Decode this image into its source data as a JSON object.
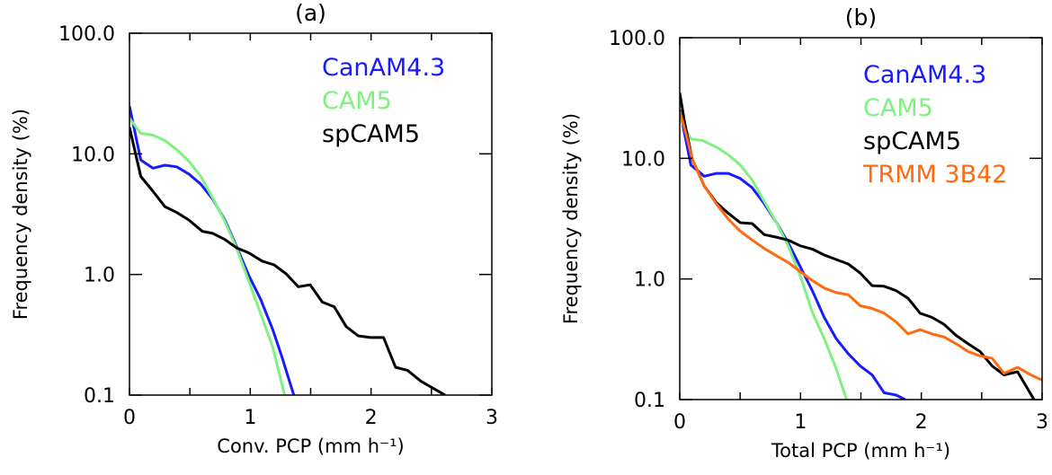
{
  "chart_data": [
    {
      "type": "line",
      "title": "(a)",
      "xlabel": "Conv. PCP (mm h⁻¹)",
      "ylabel": "Frequency density (%)",
      "xlim": [
        0,
        3
      ],
      "ylim": [
        0.1,
        100
      ],
      "yscale": "log",
      "xticks": [
        "0",
        "1",
        "2",
        "3"
      ],
      "yticks": [
        "100.0",
        "10.0",
        "1.0",
        "0.1"
      ],
      "legend_position": "top-right",
      "series": [
        {
          "name": "CanAM4.3",
          "color": "#1a1aff",
          "x": [
            0,
            0.094,
            0.194,
            0.293,
            0.392,
            0.491,
            0.591,
            0.69,
            0.79,
            0.888,
            0.988,
            1.087,
            1.186,
            1.26,
            1.36
          ],
          "y": [
            24.8,
            8.87,
            7.6,
            8.05,
            7.8,
            6.8,
            5.6,
            4.2,
            2.83,
            1.69,
            0.98,
            0.62,
            0.35,
            0.21,
            0.1
          ]
        },
        {
          "name": "CAM5",
          "color": "#80f080",
          "x": [
            0,
            0.094,
            0.194,
            0.293,
            0.392,
            0.491,
            0.591,
            0.69,
            0.79,
            0.888,
            0.988,
            1.087,
            1.186,
            1.285
          ],
          "y": [
            19.7,
            14.8,
            14.3,
            12.9,
            10.8,
            8.7,
            6.5,
            4.3,
            2.75,
            1.64,
            0.88,
            0.47,
            0.25,
            0.1
          ]
        },
        {
          "name": "spCAM5",
          "color": "#000000",
          "x": [
            0,
            0.094,
            0.194,
            0.293,
            0.392,
            0.491,
            0.603,
            0.69,
            0.789,
            0.888,
            0.988,
            1.099,
            1.198,
            1.298,
            1.397,
            1.496,
            1.596,
            1.695,
            1.794,
            1.893,
            1.993,
            2.104,
            2.203,
            2.303,
            2.414,
            2.613
          ],
          "y": [
            16.6,
            6.5,
            4.9,
            3.65,
            3.26,
            2.83,
            2.28,
            2.19,
            1.95,
            1.66,
            1.51,
            1.29,
            1.2,
            1.01,
            0.79,
            0.82,
            0.59,
            0.54,
            0.37,
            0.31,
            0.3,
            0.3,
            0.17,
            0.16,
            0.13,
            0.1
          ]
        }
      ]
    },
    {
      "type": "line",
      "title": "(b)",
      "xlabel": "Total PCP (mm h⁻¹)",
      "ylabel": "Frequency density (%)",
      "xlim": [
        0,
        3
      ],
      "ylim": [
        0.1,
        100
      ],
      "yscale": "log",
      "xticks": [
        "0",
        "1",
        "2",
        "3"
      ],
      "yticks": [
        "100.0",
        "10.0",
        "1.0",
        "0.1"
      ],
      "legend_position": "top-right",
      "series": [
        {
          "name": "CanAM4.3",
          "color": "#1a1aff",
          "x": [
            0,
            0.092,
            0.203,
            0.303,
            0.402,
            0.501,
            0.6,
            0.7,
            0.799,
            0.898,
            0.998,
            1.097,
            1.196,
            1.295,
            1.395,
            1.494,
            1.593,
            1.692,
            1.792,
            1.866
          ],
          "y": [
            25.2,
            8.8,
            7.1,
            7.5,
            7.5,
            6.8,
            5.7,
            4.2,
            2.96,
            1.99,
            1.26,
            0.8,
            0.48,
            0.32,
            0.24,
            0.19,
            0.16,
            0.114,
            0.109,
            0.1
          ]
        },
        {
          "name": "CAM5",
          "color": "#80f080",
          "x": [
            0,
            0.092,
            0.191,
            0.303,
            0.402,
            0.501,
            0.6,
            0.7,
            0.799,
            0.898,
            0.998,
            1.097,
            1.196,
            1.295,
            1.382
          ],
          "y": [
            21.3,
            14.5,
            14.0,
            12.4,
            10.7,
            8.8,
            6.6,
            4.4,
            2.96,
            1.88,
            1.06,
            0.53,
            0.32,
            0.18,
            0.1
          ]
        },
        {
          "name": "spCAM5",
          "color": "#000000",
          "x": [
            0,
            0.042,
            0.104,
            0.203,
            0.303,
            0.402,
            0.501,
            0.6,
            0.7,
            0.799,
            0.898,
            0.998,
            1.097,
            1.196,
            1.295,
            1.395,
            1.494,
            1.593,
            1.692,
            1.792,
            1.891,
            1.99,
            2.089,
            2.189,
            2.288,
            2.387,
            2.486,
            2.586,
            2.685,
            2.797,
            2.933
          ],
          "y": [
            34.9,
            19.5,
            9.8,
            5.9,
            4.3,
            3.5,
            2.93,
            2.88,
            2.33,
            2.22,
            2.1,
            1.88,
            1.77,
            1.58,
            1.45,
            1.33,
            1.12,
            0.88,
            0.87,
            0.8,
            0.69,
            0.52,
            0.48,
            0.42,
            0.34,
            0.29,
            0.25,
            0.19,
            0.16,
            0.17,
            0.1
          ]
        },
        {
          "name": "TRMM 3B42",
          "color": "#ff6a10",
          "x": [
            0,
            0.055,
            0.104,
            0.203,
            0.303,
            0.402,
            0.501,
            0.6,
            0.7,
            0.799,
            0.898,
            0.998,
            1.097,
            1.196,
            1.295,
            1.395,
            1.494,
            1.593,
            1.692,
            1.792,
            1.891,
            1.99,
            2.089,
            2.189,
            2.288,
            2.387,
            2.486,
            2.586,
            2.685,
            2.797,
            2.908,
            3.0
          ],
          "y": [
            24.5,
            15.5,
            9.8,
            5.9,
            4.2,
            3.13,
            2.49,
            2.1,
            1.79,
            1.56,
            1.37,
            1.15,
            0.97,
            0.84,
            0.77,
            0.74,
            0.6,
            0.57,
            0.52,
            0.44,
            0.35,
            0.38,
            0.35,
            0.33,
            0.29,
            0.25,
            0.23,
            0.22,
            0.165,
            0.185,
            0.16,
            0.145
          ]
        }
      ]
    }
  ]
}
